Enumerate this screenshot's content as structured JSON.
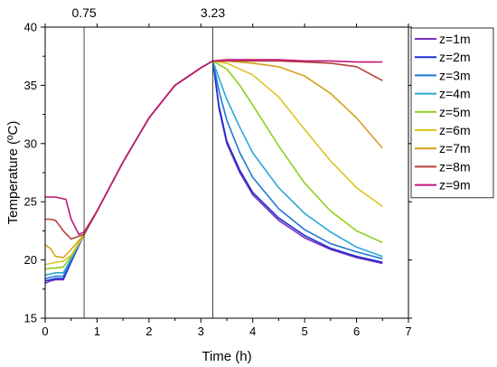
{
  "chart_data": {
    "type": "line",
    "xlabel": "Time (h)",
    "ylabel": "Temperature (ºC)",
    "xlim": [
      0,
      7
    ],
    "ylim": [
      15,
      40
    ],
    "xticks": [
      "0",
      "1",
      "2",
      "3",
      "4",
      "5",
      "6",
      "7"
    ],
    "yticks": [
      "15",
      "20",
      "25",
      "30",
      "35",
      "40"
    ],
    "grid": false,
    "legend_position": "right",
    "vertical_markers": [
      {
        "x": 0.75,
        "label": "0.75"
      },
      {
        "x": 3.23,
        "label": "3.23"
      }
    ],
    "series": [
      {
        "name": "z=1m",
        "color": "#7b2fbe",
        "x": [
          0,
          0.1,
          0.2,
          0.35,
          0.5,
          0.75,
          1.0,
          1.5,
          2.0,
          2.5,
          3.0,
          3.23,
          3.35,
          3.5,
          3.75,
          4.0,
          4.5,
          5.0,
          5.5,
          6.0,
          6.5
        ],
        "y": [
          18.0,
          18.2,
          18.3,
          18.3,
          19.8,
          22.2,
          24.2,
          28.4,
          32.2,
          35.0,
          36.5,
          37.1,
          33.0,
          30.0,
          27.5,
          25.6,
          23.4,
          21.9,
          20.9,
          20.2,
          19.7
        ]
      },
      {
        "name": "z=2m",
        "color": "#1b2fd0",
        "x": [
          0,
          0.1,
          0.2,
          0.35,
          0.5,
          0.75,
          1.0,
          1.5,
          2.0,
          2.5,
          3.0,
          3.23,
          3.35,
          3.5,
          3.75,
          4.0,
          4.5,
          5.0,
          5.5,
          6.0,
          6.5
        ],
        "y": [
          18.2,
          18.3,
          18.4,
          18.4,
          19.9,
          22.2,
          24.2,
          28.4,
          32.2,
          35.0,
          36.5,
          37.1,
          33.2,
          30.2,
          27.7,
          25.8,
          23.6,
          22.1,
          21.0,
          20.3,
          19.8
        ]
      },
      {
        "name": "z=3m",
        "color": "#1f78d6",
        "x": [
          0,
          0.1,
          0.2,
          0.35,
          0.5,
          0.75,
          1.0,
          1.5,
          2.0,
          2.5,
          3.0,
          3.23,
          3.35,
          3.5,
          3.75,
          4.0,
          4.5,
          5.0,
          5.5,
          6.0,
          6.5
        ],
        "y": [
          18.4,
          18.5,
          18.6,
          18.6,
          20.0,
          22.2,
          24.2,
          28.4,
          32.2,
          35.0,
          36.5,
          37.1,
          34.5,
          32.0,
          29.2,
          27.1,
          24.4,
          22.6,
          21.4,
          20.7,
          20.1
        ]
      },
      {
        "name": "z=4m",
        "color": "#2aa8d8",
        "x": [
          0,
          0.1,
          0.2,
          0.35,
          0.5,
          0.75,
          1.0,
          1.5,
          2.0,
          2.5,
          3.0,
          3.23,
          3.35,
          3.5,
          3.75,
          4.0,
          4.5,
          5.0,
          5.5,
          6.0,
          6.5
        ],
        "y": [
          18.7,
          18.8,
          18.9,
          18.9,
          20.1,
          22.2,
          24.2,
          28.4,
          32.2,
          35.0,
          36.5,
          37.1,
          35.6,
          33.8,
          31.4,
          29.2,
          26.2,
          24.0,
          22.4,
          21.1,
          20.3
        ]
      },
      {
        "name": "z=5m",
        "color": "#8fcf1a",
        "x": [
          0,
          0.1,
          0.2,
          0.35,
          0.5,
          0.75,
          1.0,
          1.5,
          2.0,
          2.5,
          3.0,
          3.23,
          3.5,
          3.75,
          4.0,
          4.5,
          5.0,
          5.5,
          6.0,
          6.5
        ],
        "y": [
          19.2,
          19.3,
          19.3,
          19.4,
          20.3,
          22.2,
          24.2,
          28.4,
          32.2,
          35.0,
          36.5,
          37.1,
          36.4,
          35.0,
          33.3,
          29.8,
          26.6,
          24.2,
          22.5,
          21.5
        ]
      },
      {
        "name": "z=6m",
        "color": "#dcc422",
        "x": [
          0,
          0.1,
          0.2,
          0.35,
          0.5,
          0.75,
          1.0,
          1.5,
          2.0,
          2.5,
          3.0,
          3.23,
          3.5,
          4.0,
          4.5,
          5.0,
          5.5,
          6.0,
          6.5
        ],
        "y": [
          19.6,
          19.7,
          19.8,
          19.9,
          20.4,
          22.2,
          24.2,
          28.4,
          32.2,
          35.0,
          36.5,
          37.1,
          36.9,
          35.9,
          34.0,
          31.2,
          28.5,
          26.2,
          24.6
        ]
      },
      {
        "name": "z=7m",
        "color": "#d4a11a",
        "x": [
          0,
          0.1,
          0.2,
          0.35,
          0.5,
          0.75,
          1.0,
          1.5,
          2.0,
          2.5,
          3.0,
          3.23,
          3.5,
          4.0,
          4.5,
          5.0,
          5.5,
          6.0,
          6.5
        ],
        "y": [
          21.3,
          21.0,
          20.3,
          20.2,
          20.9,
          22.2,
          24.2,
          28.4,
          32.2,
          35.0,
          36.5,
          37.1,
          37.1,
          36.9,
          36.6,
          35.8,
          34.3,
          32.2,
          29.6
        ]
      },
      {
        "name": "z=8m",
        "color": "#b4413a",
        "x": [
          0,
          0.1,
          0.2,
          0.35,
          0.5,
          0.75,
          1.0,
          1.5,
          2.0,
          2.5,
          3.0,
          3.23,
          3.5,
          4.0,
          4.5,
          5.0,
          5.5,
          6.0,
          6.5
        ],
        "y": [
          23.5,
          23.5,
          23.4,
          22.5,
          21.8,
          22.2,
          24.2,
          28.4,
          32.2,
          35.0,
          36.5,
          37.1,
          37.1,
          37.1,
          37.1,
          37.0,
          36.9,
          36.6,
          35.4
        ]
      },
      {
        "name": "z=9m",
        "color": "#c0157a",
        "x": [
          0,
          0.1,
          0.2,
          0.4,
          0.5,
          0.65,
          0.75,
          1.0,
          1.5,
          2.0,
          2.5,
          3.0,
          3.23,
          3.5,
          4.0,
          4.5,
          5.0,
          5.5,
          6.0,
          6.5
        ],
        "y": [
          25.4,
          25.4,
          25.4,
          25.2,
          23.5,
          22.2,
          22.4,
          24.2,
          28.4,
          32.2,
          35.0,
          36.5,
          37.1,
          37.2,
          37.2,
          37.2,
          37.1,
          37.1,
          37.0,
          37.0
        ]
      }
    ]
  }
}
